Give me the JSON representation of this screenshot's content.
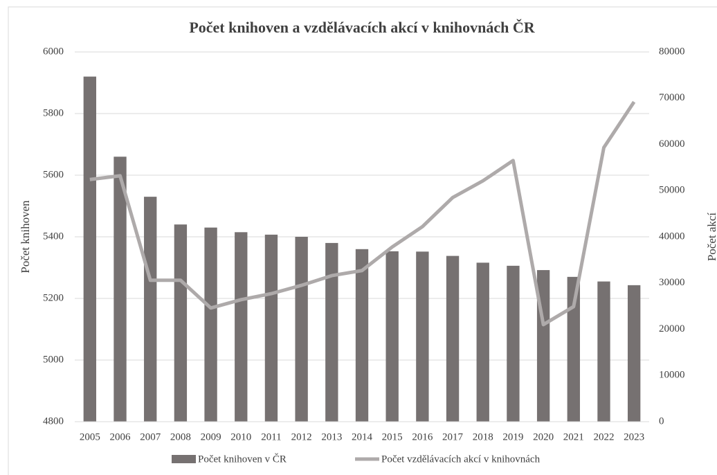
{
  "chart_data": {
    "type": "bar-line",
    "title": "Počet knihoven a vzdělávacích akcí v knihovnách ČR",
    "ylabel": "Počet knihoven",
    "y2label": "Počet akcí",
    "categories": [
      "2005",
      "2006",
      "2007",
      "2008",
      "2009",
      "2010",
      "2011",
      "2012",
      "2013",
      "2014",
      "2015",
      "2016",
      "2017",
      "2018",
      "2019",
      "2020",
      "2021",
      "2022",
      "2023"
    ],
    "series": [
      {
        "name": "Počet knihoven v ČR",
        "type": "bar",
        "color": "#767171",
        "values": [
          5920,
          5660,
          5530,
          5440,
          5430,
          5415,
          5407,
          5400,
          5380,
          5360,
          5353,
          5352,
          5338,
          5316,
          5306,
          5292,
          5270,
          5255,
          5243
        ]
      },
      {
        "name": "Počet vzdělávacích akcí v knihovnách",
        "type": "line",
        "axis": "y2",
        "color": "#aeaaaa",
        "values": [
          52400,
          53200,
          30600,
          30600,
          24600,
          26400,
          27700,
          29500,
          31600,
          32700,
          37800,
          42200,
          48500,
          52100,
          56500,
          21000,
          24900,
          59300,
          69200
        ]
      }
    ],
    "ylim": [
      4800,
      6000
    ],
    "yticks": [
      4800,
      5000,
      5200,
      5400,
      5600,
      5800,
      6000
    ],
    "y2lim": [
      0,
      80000
    ],
    "y2ticks": [
      0,
      10000,
      20000,
      30000,
      40000,
      50000,
      60000,
      70000,
      80000
    ],
    "grid": true
  }
}
